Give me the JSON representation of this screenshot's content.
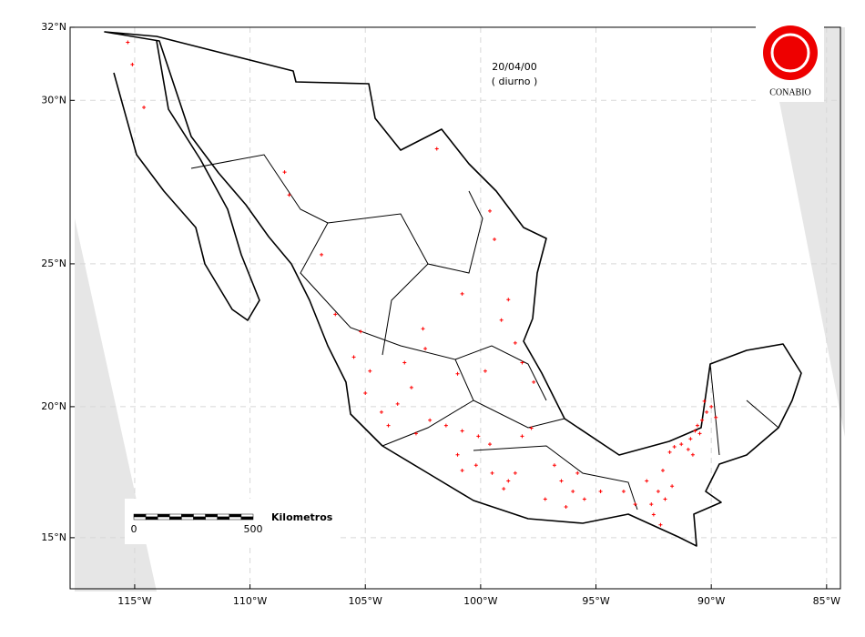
{
  "chart_data": {
    "type": "scatter",
    "title": "20/04/00",
    "subtitle": "( diurno )",
    "logo_text": "CONABIO",
    "color": "#ff0000",
    "grid": true,
    "xlim": [
      -117.8,
      -84.4
    ],
    "ylim": [
      13,
      32
    ],
    "xticks": [
      {
        "value": -115,
        "label": "115°W"
      },
      {
        "value": -110,
        "label": "110°W"
      },
      {
        "value": -105,
        "label": "105°W"
      },
      {
        "value": -100,
        "label": "100°W"
      },
      {
        "value": -95,
        "label": "95°W"
      },
      {
        "value": -90,
        "label": "90°W"
      },
      {
        "value": -85,
        "label": "85°W"
      }
    ],
    "yticks": [
      {
        "value": 15,
        "label": "15°N"
      },
      {
        "value": 20,
        "label": "20°N"
      },
      {
        "value": 25,
        "label": "25°N"
      },
      {
        "value": 30,
        "label": "30°N"
      },
      {
        "value": 32,
        "label": "32°N"
      }
    ],
    "scale_bar": {
      "label": "Kilometros",
      "ticks": [
        0,
        500
      ]
    },
    "x": [
      -90.6,
      -90.4,
      -90.7,
      -90.2,
      -90.0,
      -90.5,
      -90.9,
      -91.3,
      -91.6,
      -91.0,
      -90.8,
      -91.8,
      -90.3,
      -89.8,
      -92.8,
      -92.3,
      -92.0,
      -92.6,
      -92.5,
      -93.3,
      -93.8,
      -92.1,
      -91.7,
      -92.2,
      -96.0,
      -96.5,
      -95.5,
      -97.2,
      -96.8,
      -94.8,
      -95.8,
      -96.3,
      -99.5,
      -98.8,
      -100.2,
      -100.8,
      -99.0,
      -98.5,
      -101.0,
      -101.5,
      -102.2,
      -100.8,
      -99.6,
      -98.2,
      -97.8,
      -100.1,
      -102.8,
      -103.6,
      -104.3,
      -104.8,
      -103.0,
      -104.0,
      -105.0,
      -103.3,
      -102.5,
      -102.4,
      -101.0,
      -99.8,
      -98.5,
      -98.2,
      -97.7,
      -98.8,
      -99.1,
      -100.8,
      -99.4,
      -99.6,
      -101.9,
      -106.9,
      -108.3,
      -108.5,
      -105.2,
      -106.3,
      -115.3,
      -115.1,
      -114.6,
      -105.5
    ],
    "y": [
      19.3,
      19.5,
      19.1,
      19.8,
      20.0,
      19.0,
      18.8,
      18.6,
      18.5,
      18.4,
      18.2,
      18.3,
      20.2,
      19.6,
      17.2,
      16.8,
      16.5,
      16.3,
      15.9,
      16.3,
      16.8,
      17.6,
      17.0,
      15.5,
      16.8,
      17.2,
      16.5,
      16.5,
      17.8,
      16.8,
      17.5,
      16.2,
      17.5,
      17.2,
      17.8,
      17.6,
      16.9,
      17.5,
      18.2,
      19.3,
      19.5,
      19.1,
      18.6,
      18.9,
      19.2,
      18.9,
      19.0,
      20.1,
      19.8,
      21.3,
      20.7,
      19.3,
      20.5,
      21.6,
      22.8,
      22.1,
      21.2,
      21.3,
      22.3,
      21.6,
      20.9,
      23.8,
      23.1,
      24.0,
      25.8,
      26.7,
      28.6,
      25.3,
      27.2,
      27.9,
      22.7,
      23.3,
      31.6,
      31.0,
      29.8,
      21.8
    ]
  }
}
